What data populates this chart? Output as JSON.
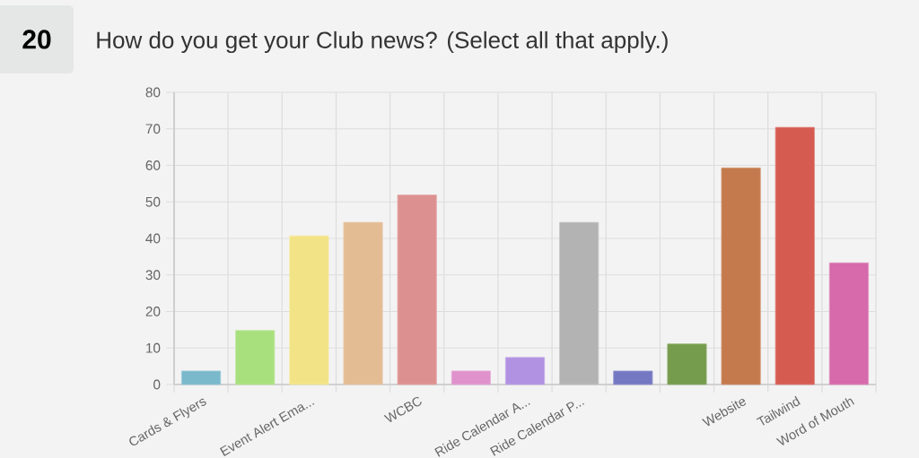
{
  "chart_data": {
    "type": "bar",
    "title": "How do you get your Club news? (Select all that apply.)",
    "annotations": [
      "20"
    ],
    "categories": [
      "Cards & Flyers",
      null,
      "Event Alert Ema...",
      null,
      "WCBC",
      null,
      "Ride Calendar A...",
      "Ride Calendar P...",
      null,
      null,
      "Website",
      "Tailwind",
      "Word of Mouth"
    ],
    "values": [
      3.7,
      14.8,
      40.7,
      44.4,
      51.9,
      3.7,
      7.4,
      44.4,
      3.7,
      11.1,
      59.3,
      70.4,
      33.3
    ],
    "colors": [
      "#7ab8cc",
      "#a9e07e",
      "#f2e387",
      "#e3bc93",
      "#dc9190",
      "#df92cc",
      "#b191e2",
      "#b3b3b3",
      "#7478c2",
      "#759b4c",
      "#c47a4c",
      "#d55b51",
      "#d66aaa"
    ],
    "ylim": [
      0,
      80
    ],
    "yticks": [
      0,
      10,
      20,
      30,
      40,
      50,
      60,
      70,
      80
    ],
    "grid": true
  }
}
